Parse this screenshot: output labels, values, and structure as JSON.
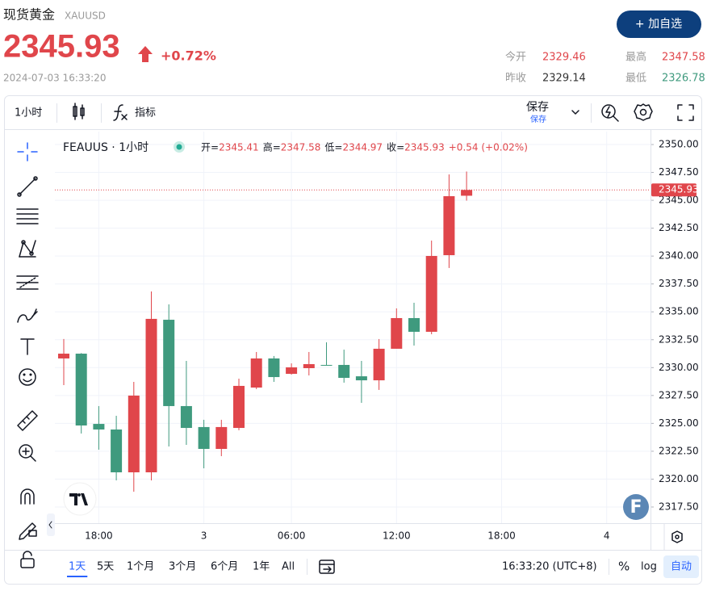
{
  "header": {
    "title": "现货黄金",
    "symbol": "XAUUSD",
    "change_pct": "+0.72%",
    "timestamp": "2024-07-03 16:33:20",
    "watch_button": "+ 加自选",
    "stats": [
      {
        "label": "今开",
        "value": 2329.46,
        "color": "#e0464b"
      },
      {
        "label": "最高",
        "value": 2347.58,
        "color": "#e0464b"
      },
      {
        "label": "昨收",
        "value": 2329.14,
        "color": "#333333"
      },
      {
        "label": "最低",
        "value": 2326.78,
        "color": "#3f9a7e"
      }
    ]
  },
  "toolbar": {
    "interval": "1小时",
    "indicators": "指标",
    "save": "保存",
    "save_sub": "保存"
  },
  "legend": {
    "symbol": "FEAUUS · 1小时",
    "open_label": "开=",
    "high_label": "高=",
    "low_label": "低=",
    "close_label": "收=",
    "change": "+0.54 (+0.02%)"
  },
  "brand_badge": "F",
  "bottom_bar": {
    "ranges": [
      "1天",
      "5天",
      "1个月",
      "3个月",
      "6个月",
      "1年",
      "All"
    ],
    "clock": "16:33:20 (UTC+8)",
    "percent": "%",
    "log": "log",
    "auto": "自动"
  },
  "chart_data": {
    "type": "candlestick",
    "categories": [
      null,
      null,
      "18:00",
      null,
      null,
      null,
      null,
      null,
      "3",
      null,
      null,
      null,
      null,
      "06:00",
      null,
      null,
      null,
      null,
      null,
      "12:00",
      null,
      null,
      null,
      null,
      null,
      "18:00",
      null,
      null,
      null,
      null,
      null,
      "4",
      null,
      null
    ],
    "open": [
      2330.82,
      2331.25,
      2324.95,
      2324.45,
      2320.61,
      2320.61,
      2334.29,
      2326.55,
      2324.67,
      2322.71,
      2324.59,
      2328.21,
      2330.82,
      2329.44,
      2329.95,
      2330.24,
      2330.24,
      2329.22,
      2328.86,
      2331.69,
      2334.44,
      2333.21,
      2340.08,
      2345.41,
      null,
      null,
      null,
      null,
      null,
      null,
      null,
      null,
      null,
      null
    ],
    "high": [
      2332.56,
      2331.3,
      2326.55,
      2325.68,
      2328.72,
      2336.83,
      2335.67,
      2330.6,
      2325.32,
      2325.32,
      2329.01,
      2331.4,
      2331.04,
      2330.38,
      2331.4,
      2332.27,
      2331.61,
      2330.6,
      2332.56,
      2335.31,
      2335.81,
      2341.39,
      2347.32,
      2347.58,
      null,
      null,
      null,
      null,
      null,
      null,
      null,
      null,
      null,
      null
    ],
    "low": [
      2328.43,
      2324.09,
      2322.64,
      2319.89,
      2318.87,
      2319.89,
      2322.93,
      2323.07,
      2320.97,
      2322.06,
      2324.38,
      2328.07,
      2328.72,
      2329.37,
      2329.3,
      2330.17,
      2328.65,
      2326.84,
      2328.0,
      2331.69,
      2331.98,
      2332.99,
      2338.93,
      2344.97,
      null,
      null,
      null,
      null,
      null,
      null,
      null,
      null,
      null,
      null
    ],
    "close": [
      2331.25,
      2324.81,
      2324.45,
      2320.61,
      2327.49,
      2334.37,
      2326.55,
      2324.59,
      2322.71,
      2324.67,
      2328.36,
      2330.82,
      2329.15,
      2330.02,
      2330.31,
      2330.17,
      2329.08,
      2328.86,
      2331.69,
      2334.44,
      2333.21,
      2340.01,
      2345.37,
      2345.93,
      null,
      null,
      null,
      null,
      null,
      null,
      null,
      null,
      null,
      null
    ],
    "up_color": "#e0464b",
    "down_color": "#3f9a7e",
    "ylim": [
      2316.05,
      2351.16
    ],
    "yticks": [
      {
        "value": 2317.5,
        "label": "2317.50"
      },
      {
        "value": 2320,
        "label": "2320.00"
      },
      {
        "value": 2322.5,
        "label": "2322.50"
      },
      {
        "value": 2325,
        "label": "2325.00"
      },
      {
        "value": 2327.5,
        "label": "2327.50"
      },
      {
        "value": 2330,
        "label": "2330.00"
      },
      {
        "value": 2332.5,
        "label": "2332.50"
      },
      {
        "value": 2335,
        "label": "2335.00"
      },
      {
        "value": 2337.5,
        "label": "2337.50"
      },
      {
        "value": 2340,
        "label": "2340.00"
      },
      {
        "value": 2342.5,
        "label": "2342.50"
      },
      {
        "value": 2345,
        "label": "2345.00"
      },
      {
        "value": 2347.5,
        "label": "2347.50"
      },
      {
        "value": 2350,
        "label": "2350.00"
      }
    ],
    "grid": true
  }
}
